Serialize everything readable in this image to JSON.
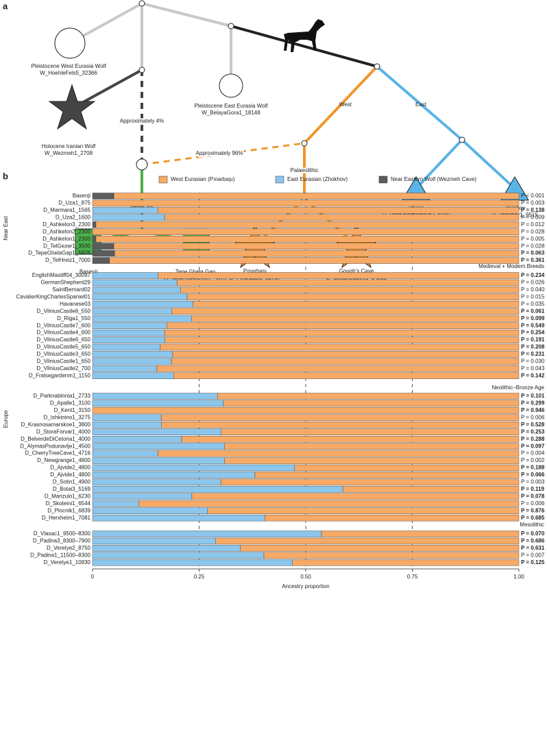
{
  "diagram": {
    "panel_label": "a",
    "labels": [
      [
        "Pleistocene West Eurasia Wolf",
        "W_HoehleFels5_32366"
      ],
      [
        "Pleistocene East Eurasia Wolf",
        "W_BelayaGora1_18148"
      ],
      [
        "Holocene Iranian Wolf",
        "W_Wezmeh1_2708"
      ],
      [
        "Approximately 4%"
      ],
      [
        "Approximately 96%"
      ],
      [
        "West"
      ],
      [
        "East"
      ],
      [
        "Palaeolithic"
      ],
      [
        "Near East"
      ],
      [
        "Basenji"
      ],
      [
        "Tepe Ghela Gap",
        "D_TepeGhelaGap1_5826"
      ],
      [
        "Pınarbaşı",
        "D_Pinarbasi1_15787"
      ],
      [
        "Gough’s Cave",
        "D_GoughsCave1_14269"
      ],
      [
        "Baikal",
        "D_PadKalashkinova2_6900"
      ],
      [
        "Zhokhov",
        "D_Zhokhov1_9515"
      ]
    ]
  },
  "chart_data": {
    "type": "bar",
    "orientation": "horizontal",
    "stacked": true,
    "panel_label": "b",
    "xlabel": "Ancestry proportion",
    "xlim": [
      0,
      1
    ],
    "xticks": [
      0,
      0.25,
      {
        "value": 0.5,
        "label": "0.50"
      },
      0.75,
      {
        "value": 1,
        "label": "1.00"
      }
    ],
    "grid": true,
    "regions": [
      "Near East",
      "Europe"
    ],
    "group_titles": [
      null,
      "Medieval + Modern Breeds",
      "Neolithic–Bronze Age",
      "Mesolithic"
    ],
    "categories": [
      [
        "Basenji",
        "D_Uza1_875",
        "D_Marmara1_1565",
        "D_Uza2_1600",
        "D_Ashkelon3_2300",
        "D_Ashkelon2_2300",
        "D_Ashkelon1_2300",
        "D_TelGezer1_3500",
        "D_TepeGhelaGap1_5826",
        "D_TelHreiz1_7000"
      ],
      [
        "EnglishMastiff04_30097",
        "GermanShepherd29",
        "SaintBernard02",
        "CavalierKingCharlesSpaniel01",
        "Havanese03",
        "D_VilniusCastle8_550",
        "D_Riga1_550",
        "D_VilniusCastle7_600",
        "D_VilniusCastle4_600",
        "D_VilniusCastle6_650",
        "D_VilniusCastle5_650",
        "D_VilniusCastle3_650",
        "D_VilniusCastle1_650",
        "D_VilniusCastle2_700",
        "D_Fralsegardenm1_1150"
      ],
      [
        "D_Parknabinnia1_2733",
        "D_Apalle1_3100",
        "D_Kent1_3150",
        "D_Ishkinino1_3275",
        "D_Krasnosamarskoe1_3800",
        "D_StoraForvar1_4000",
        "D_BelverdeDiCetona1_4000",
        "D_AlymasPodunavlje1_4500",
        "D_CherryTreeCave1_4716",
        "D_Newgrange1_4800",
        "D_Ajvide2_4800",
        "D_Ajvide1_4800",
        "D_Sotin1_4900",
        "D_Botai3_5169",
        "D_Marizulo1_6230",
        "D_Skoteini1_6544",
        "D_Plocnik1_6839",
        "D_Herxheim1_7081"
      ],
      [
        "D_Vlasac1_9500–8300",
        "D_Padina3_8300–7900",
        "D_Veretye2_8750",
        "D_Padina1_11500–8300",
        "D_Veretye1_10930"
      ]
    ],
    "series": [
      {
        "name": "West Eurasian (Pınarbaşı)",
        "color": "#f7aa66",
        "values": [
          [
            0.95,
            1,
            0.847,
            0.831,
            0.992,
            1,
            0.992,
            0.95,
            0.948,
            0.96
          ],
          [
            0.846,
            0.802,
            0.793,
            0.778,
            0.764,
            0.814,
            0.768,
            0.826,
            0.831,
            0.83,
            0.841,
            0.812,
            0.815,
            0.849,
            0.81
          ],
          [
            0.707,
            0.693,
            1,
            0.839,
            0.838,
            0.698,
            0.791,
            0.69,
            0.847,
            0.69,
            0.526,
            0.619,
            0.699,
            0.413,
            0.767,
            0.891,
            0.73,
            0.596
          ],
          [
            0.463,
            0.711,
            0.653,
            0.598,
            0.531
          ]
        ]
      },
      {
        "name": "East Eurasian (Zhokhov)",
        "color": "#8cc6ec",
        "values": [
          [
            0,
            0,
            0.153,
            0.169,
            0,
            0,
            0,
            0,
            0,
            0
          ],
          [
            0.154,
            0.198,
            0.207,
            0.222,
            0.236,
            0.186,
            0.232,
            0.174,
            0.169,
            0.17,
            0.159,
            0.188,
            0.185,
            0.151,
            0.19
          ],
          [
            0.293,
            0.307,
            0,
            0.161,
            0.162,
            0.302,
            0.209,
            0.31,
            0.153,
            0.31,
            0.474,
            0.381,
            0.301,
            0.587,
            0.233,
            0.109,
            0.27,
            0.404
          ],
          [
            0.537,
            0.289,
            0.347,
            0.402,
            0.469
          ]
        ]
      },
      {
        "name": "Near Eastern Wolf (Wezmeh Cave)",
        "color": "#5c5c5c",
        "values": [
          [
            0.05,
            0,
            0,
            0,
            0.008,
            0,
            0.008,
            0.05,
            0.052,
            0.04
          ],
          [
            0,
            0,
            0,
            0,
            0,
            0,
            0,
            0,
            0,
            0,
            0,
            0,
            0,
            0,
            0
          ],
          [
            0,
            0,
            0,
            0,
            0,
            0,
            0,
            0,
            0,
            0,
            0,
            0,
            0,
            0,
            0,
            0,
            0,
            0
          ],
          [
            0,
            0,
            0,
            0,
            0
          ]
        ]
      }
    ],
    "p_values": [
      [
        "P < 0.001",
        "P = 0.003",
        "P = 0.138",
        "P = 0.009",
        "P = 0.012",
        "P = 0.028",
        "P = 0.005",
        "P = 0.028",
        "P = 0.063",
        "P = 0.361"
      ],
      [
        "P = 0.234",
        "P = 0.026",
        "P = 0.040",
        "P = 0.015",
        "P = 0.035",
        "P = 0.061",
        "P = 0.099",
        "P = 0.549",
        "P = 0.254",
        "P = 0.191",
        "P = 0.208",
        "P = 0.231",
        "P = 0.030",
        "P = 0.043",
        "P = 0.142"
      ],
      [
        "P = 0.101",
        "P = 0.299",
        "P = 0.946",
        "P = 0.006",
        "P = 0.528",
        "P = 0.253",
        "P = 0.288",
        "P = 0.097",
        "P = 0.004",
        "P = 0.002",
        "P = 0.188",
        "P = 0.066",
        "P = 0.003",
        "P = 0.119",
        "P = 0.078",
        "P = 0.006",
        "P = 0.876",
        "P = 0.685"
      ],
      [
        "P = 0.070",
        "P = 0.686",
        "P = 0.631",
        "P = 0.007",
        "P = 0.125"
      ]
    ],
    "p_bold": [
      [
        false,
        false,
        true,
        false,
        false,
        false,
        false,
        false,
        true,
        true
      ],
      [
        true,
        false,
        false,
        false,
        false,
        true,
        true,
        true,
        true,
        true,
        true,
        true,
        false,
        false,
        true
      ],
      [
        true,
        true,
        true,
        false,
        true,
        true,
        true,
        true,
        false,
        false,
        true,
        true,
        false,
        true,
        true,
        false,
        true,
        true
      ],
      [
        true,
        true,
        true,
        false,
        true
      ]
    ]
  }
}
